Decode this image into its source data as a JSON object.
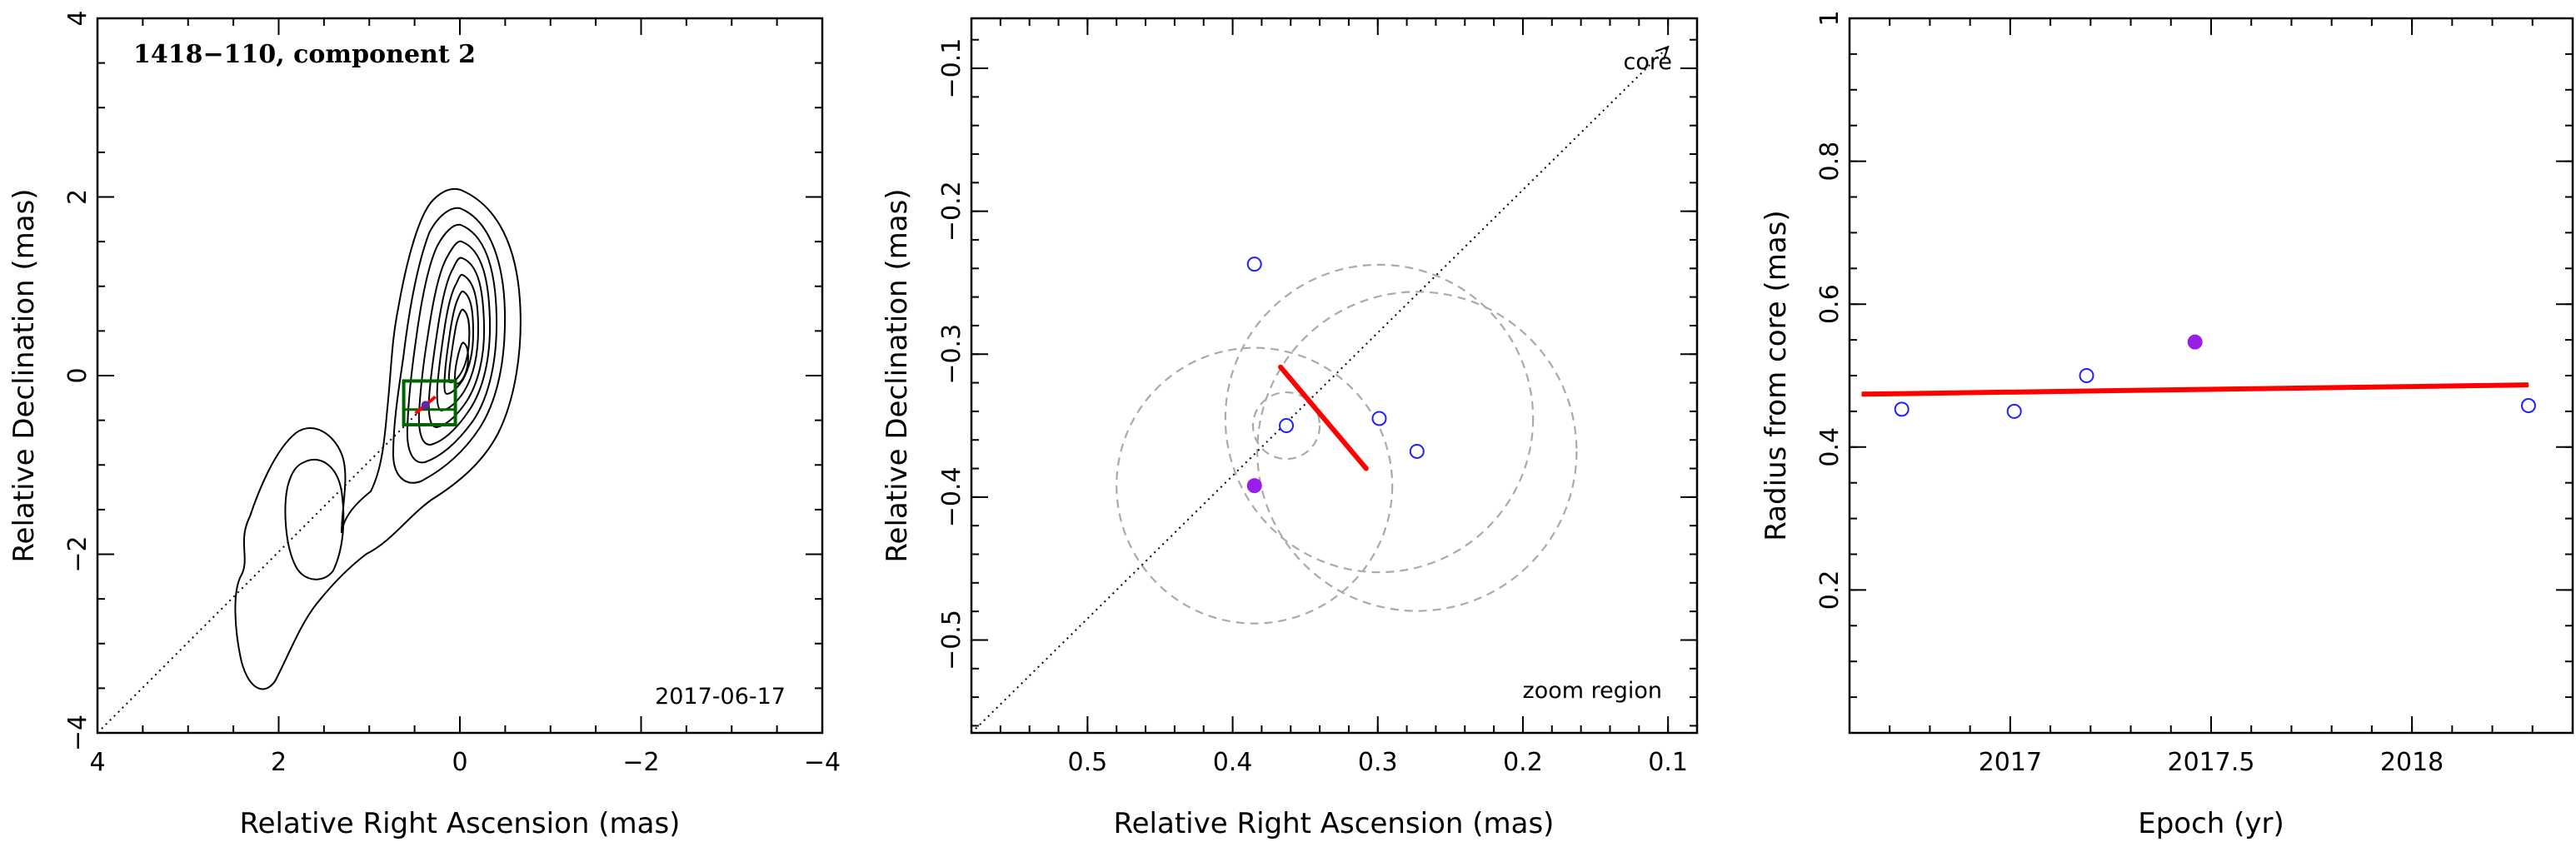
{
  "chart_data": [
    {
      "type": "contour",
      "title": "1418−110, component 2",
      "date_label": "2017-06-17",
      "xlabel": "Relative Right Ascension (mas)",
      "ylabel": "Relative Declination (mas)",
      "xlim": [
        4,
        -4
      ],
      "ylim": [
        -4,
        4
      ],
      "xticks": [
        4,
        2,
        0,
        -2,
        -4
      ],
      "yticks": [
        -4,
        -2,
        0,
        2,
        4
      ],
      "xtick_labels": [
        "4",
        "2",
        "0",
        "−2",
        "−4"
      ],
      "ytick_labels": [
        "−4",
        "−2",
        "0",
        "2",
        "4"
      ],
      "zoom_box": {
        "x": [
          0.62,
          0.05
        ],
        "y": [
          -0.55,
          -0.06
        ]
      },
      "component_marker": {
        "x": 0.38,
        "y": -0.33
      },
      "colors": {
        "zoom_box": "#006400",
        "marker": "#ff0000",
        "contours": "#000000"
      }
    },
    {
      "type": "scatter",
      "annotation_core": "core",
      "annotation_zoom": "zoom region",
      "xlabel": "Relative Right Ascension (mas)",
      "ylabel": "Relative Declination (mas)",
      "xlim": [
        0.58,
        0.08
      ],
      "ylim": [
        -0.565,
        -0.065
      ],
      "xticks": [
        0.5,
        0.4,
        0.3,
        0.2,
        0.1
      ],
      "yticks": [
        -0.5,
        -0.4,
        -0.3,
        -0.2,
        -0.1
      ],
      "xtick_labels": [
        "0.5",
        "0.4",
        "0.3",
        "0.2",
        "0.1"
      ],
      "ytick_labels": [
        "−0.5",
        "−0.4",
        "−0.3",
        "−0.2",
        "−0.1"
      ],
      "points_open": [
        {
          "x": 0.385,
          "y": -0.237
        },
        {
          "x": 0.363,
          "y": -0.35
        },
        {
          "x": 0.299,
          "y": -0.345
        },
        {
          "x": 0.273,
          "y": -0.368
        }
      ],
      "points_filled": [
        {
          "x": 0.385,
          "y": -0.392
        }
      ],
      "error_circles": [
        {
          "x": 0.385,
          "y": -0.392,
          "r": 0.095
        },
        {
          "x": 0.363,
          "y": -0.35,
          "r": 0.023
        },
        {
          "x": 0.299,
          "y": -0.345,
          "r": 0.106
        },
        {
          "x": 0.273,
          "y": -0.368,
          "r": 0.11
        }
      ],
      "fit_segment": [
        {
          "x": 0.367,
          "y": -0.309
        },
        {
          "x": 0.308,
          "y": -0.38
        }
      ],
      "colors": {
        "open_points": "#1f1fff",
        "filled_point": "#9b1de8",
        "fit": "#ff0000",
        "circles": "#aaaaaa"
      }
    },
    {
      "type": "scatter",
      "xlabel": "Epoch (yr)",
      "ylabel": "Radius from core (mas)",
      "xlim": [
        2016.6,
        2018.4
      ],
      "ylim": [
        0,
        1
      ],
      "xticks": [
        2017,
        2017.5,
        2018
      ],
      "yticks": [
        0.2,
        0.4,
        0.6,
        0.8,
        1
      ],
      "xtick_labels": [
        "2017",
        "2017.5",
        "2018"
      ],
      "ytick_labels": [
        "0.2",
        "0.4",
        "0.6",
        "0.8",
        "1"
      ],
      "points_open": [
        {
          "x": 2016.73,
          "y": 0.453
        },
        {
          "x": 2017.01,
          "y": 0.45
        },
        {
          "x": 2017.19,
          "y": 0.5
        },
        {
          "x": 2018.29,
          "y": 0.458
        }
      ],
      "points_filled": [
        {
          "x": 2017.46,
          "y": 0.547
        }
      ],
      "fit_line": [
        {
          "x": 2016.63,
          "y": 0.474
        },
        {
          "x": 2018.29,
          "y": 0.487
        }
      ],
      "colors": {
        "open_points": "#1f1fff",
        "filled_point": "#9b1de8",
        "fit": "#ff0000"
      }
    }
  ]
}
